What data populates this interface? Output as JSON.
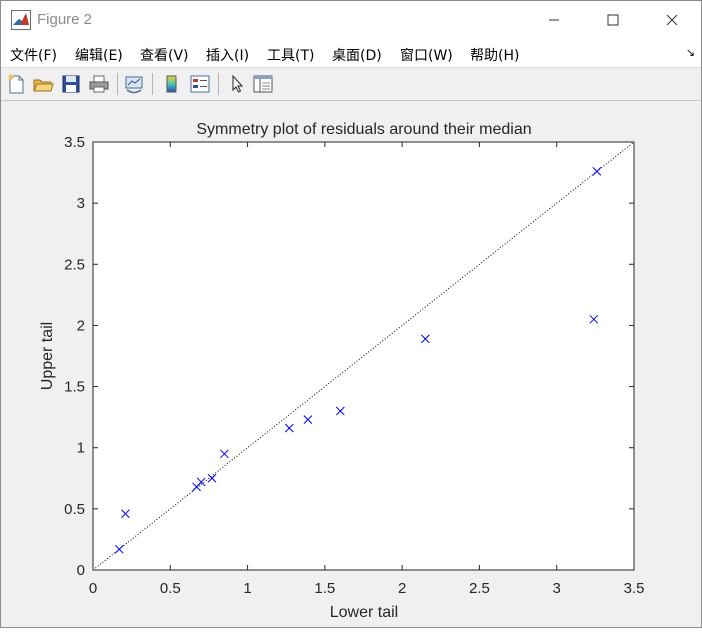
{
  "window": {
    "title": "Figure 2"
  },
  "menu": {
    "items": [
      "文件(F)",
      "编辑(E)",
      "查看(V)",
      "插入(I)",
      "工具(T)",
      "桌面(D)",
      "窗口(W)",
      "帮助(H)"
    ]
  },
  "toolbar": {
    "buttons": [
      "new-figure-icon",
      "open-file-icon",
      "save-icon",
      "print-icon",
      "link-plot-icon",
      "insert-colorbar-icon",
      "insert-legend-icon",
      "select-pointer-icon",
      "property-inspector-icon"
    ]
  },
  "colors": {
    "marker": "#0000ff",
    "reference_line": "#000000",
    "axes_background": "#ffffff",
    "figure_background": "#f0f0f0"
  },
  "chart_data": {
    "type": "scatter",
    "title": "Symmetry plot of residuals around their median",
    "xlabel": "Lower tail",
    "ylabel": "Upper tail",
    "xlim": [
      0,
      3.5
    ],
    "ylim": [
      0,
      3.5
    ],
    "xticks": [
      "0",
      "0.5",
      "1",
      "1.5",
      "2",
      "2.5",
      "3",
      "3.5"
    ],
    "yticks": [
      "0",
      "0.5",
      "1",
      "1.5",
      "2",
      "2.5",
      "3",
      "3.5"
    ],
    "grid": false,
    "marker": "x",
    "reference_line": "y = x (dotted)",
    "x": [
      0.17,
      0.21,
      0.67,
      0.7,
      0.77,
      0.85,
      1.27,
      1.39,
      1.6,
      2.15,
      3.24,
      3.26
    ],
    "y": [
      0.17,
      0.46,
      0.68,
      0.72,
      0.75,
      0.95,
      1.16,
      1.23,
      1.3,
      1.89,
      2.05,
      3.26
    ]
  }
}
